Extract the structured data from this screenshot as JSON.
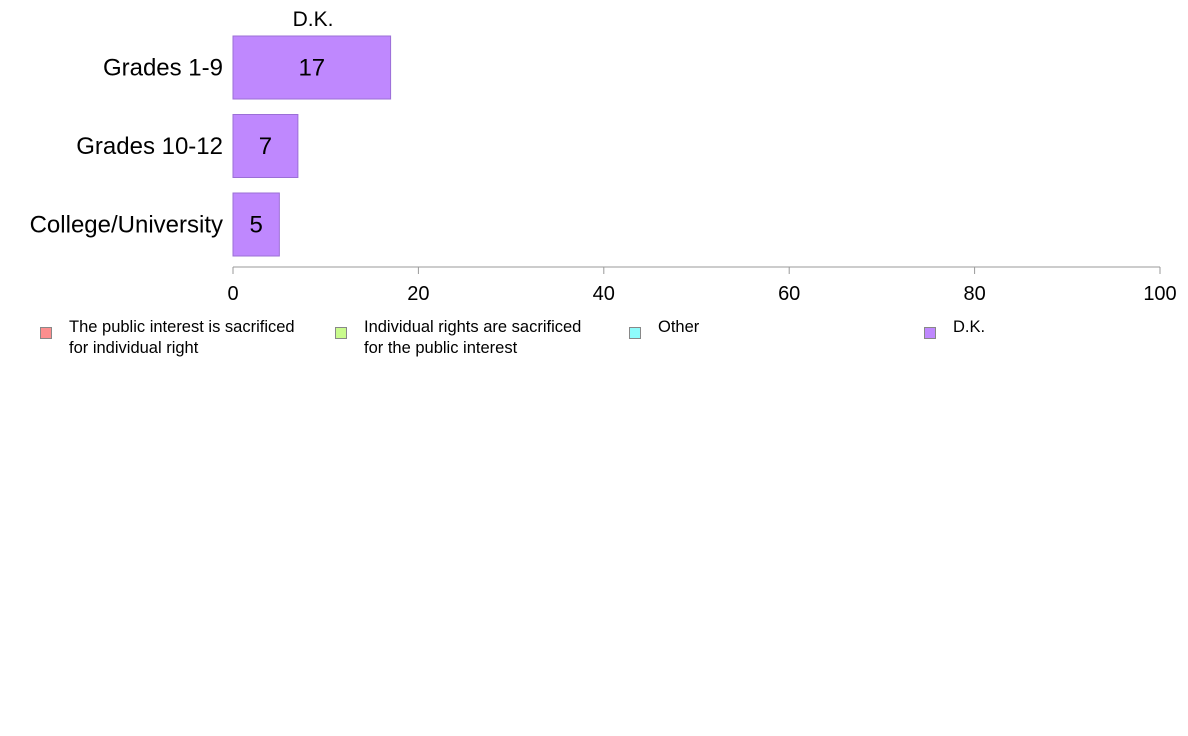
{
  "chart_data": {
    "type": "bar",
    "orientation": "horizontal",
    "title": "D.K.",
    "categories": [
      "Grades 1-9",
      "Grades 10-12",
      "College/University"
    ],
    "series": [
      {
        "name": "D.K.",
        "values": [
          17,
          7,
          5
        ],
        "labels": [
          "17",
          "7",
          "5"
        ],
        "color": "#bf88fe"
      }
    ],
    "xlim": [
      0,
      100
    ],
    "xticks": [
      0,
      20,
      40,
      60,
      80,
      100
    ],
    "xtick_labels": [
      "0",
      "20",
      "40",
      "60",
      "80",
      "100"
    ],
    "xlabel": "",
    "ylabel": "",
    "grid": false,
    "legend_position": "bottom"
  },
  "legend": {
    "items": [
      {
        "label": "The public interest is sacrificed\nfor individual right",
        "color": "#fc8e8e"
      },
      {
        "label": "Individual rights are sacrificed\nfor the public interest",
        "color": "#c9fb8d"
      },
      {
        "label": "Other",
        "color": "#8efbfb"
      },
      {
        "label": "D.K.",
        "color": "#bf88fe"
      }
    ]
  }
}
